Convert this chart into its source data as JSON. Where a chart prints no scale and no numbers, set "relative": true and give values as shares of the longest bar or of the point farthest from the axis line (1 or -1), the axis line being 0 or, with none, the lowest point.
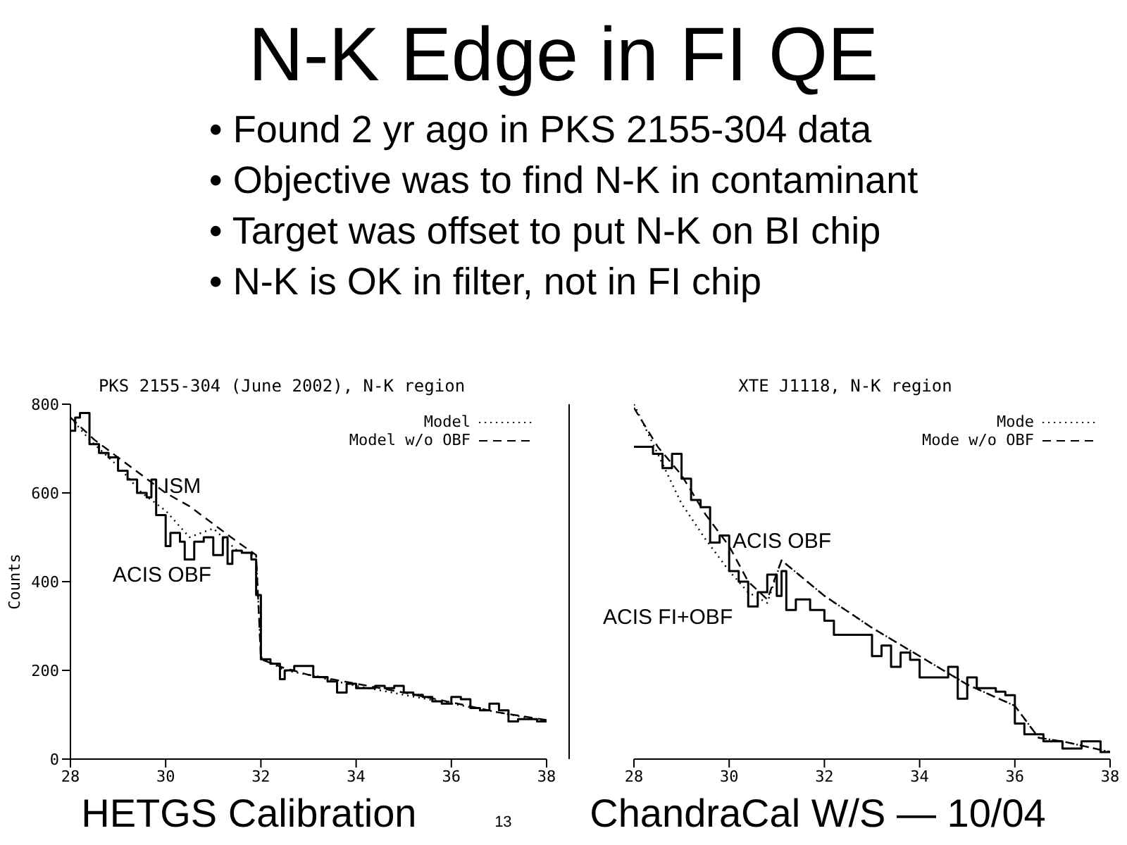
{
  "chart_data": [
    {
      "type": "other",
      "title": "N-K Edge in FI QE",
      "annotations": [
        "• Found 2 yr ago in PKS 2155-304 data",
        "• Objective was to find N-K in contaminant",
        "• Target was offset to put N-K on BI chip",
        "• N-K is OK in filter, not in FI chip"
      ]
    },
    {
      "type": "step",
      "title": "PKS 2155-304 (June 2002), N-K region",
      "ylabel": "Counts",
      "xlim": [
        28,
        38
      ],
      "xticks": [
        28,
        30,
        32,
        34,
        36,
        38
      ],
      "ylim": [
        0,
        800
      ],
      "yticks": [
        0,
        200,
        400,
        600,
        800
      ],
      "legend": "top right",
      "marker": "none",
      "annotations": [
        "ISM",
        "ACIS OBF"
      ],
      "series": [
        {
          "color": "#000000",
          "line_style": "solid",
          "x": [
            28.0,
            28.1,
            28.2,
            28.4,
            28.6,
            28.8,
            29.0,
            29.2,
            29.4,
            29.6,
            29.7,
            29.8,
            30.0,
            30.1,
            30.3,
            30.4,
            30.6,
            30.8,
            31.0,
            31.2,
            31.3,
            31.4,
            31.6,
            31.8,
            31.9,
            32.0,
            32.2,
            32.4,
            32.5,
            32.7,
            33.1,
            33.4,
            33.6,
            33.8,
            34.0,
            34.2,
            34.4,
            34.6,
            34.8,
            35.0,
            35.2,
            35.4,
            35.6,
            35.8,
            36.0,
            36.2,
            36.4,
            36.6,
            36.8,
            37.0,
            37.2,
            37.4,
            37.6,
            37.8,
            38.0
          ],
          "values": [
            740,
            770,
            780,
            710,
            690,
            680,
            650,
            630,
            600,
            590,
            630,
            550,
            480,
            510,
            490,
            450,
            490,
            500,
            460,
            500,
            440,
            470,
            465,
            450,
            370,
            225,
            215,
            180,
            200,
            210,
            185,
            175,
            150,
            170,
            160,
            160,
            165,
            160,
            165,
            150,
            145,
            140,
            130,
            125,
            140,
            135,
            115,
            110,
            125,
            110,
            85,
            90,
            90,
            85,
            85
          ]
        },
        {
          "type": "line",
          "name": "Model",
          "color": "#000000",
          "line_style": "dotted",
          "x": [
            28.0,
            28.4,
            29.0,
            29.5,
            30.0,
            30.5,
            31.0,
            31.5,
            31.9,
            32.0,
            32.5,
            33.0,
            34.0,
            35.0,
            36.0,
            37.0,
            38.0
          ],
          "values": [
            770,
            720,
            660,
            600,
            560,
            500,
            520,
            470,
            460,
            230,
            200,
            190,
            165,
            145,
            125,
            105,
            85
          ]
        },
        {
          "type": "line",
          "name": "Model w/o OBF",
          "color": "#000000",
          "line_style": "dashed",
          "x": [
            28.0,
            28.5,
            29.0,
            29.5,
            30.0,
            30.5,
            31.0,
            31.5,
            31.9,
            32.0,
            32.5,
            33.0,
            34.0,
            35.0,
            36.0,
            37.0,
            38.0
          ],
          "values": [
            770,
            720,
            680,
            640,
            600,
            570,
            530,
            490,
            460,
            225,
            205,
            190,
            170,
            150,
            128,
            105,
            88
          ]
        }
      ]
    },
    {
      "type": "step",
      "title": "XTE J1118, N-K region",
      "relative": true,
      "xlim": [
        28,
        38
      ],
      "xticks": [
        28,
        30,
        32,
        34,
        36,
        38
      ],
      "legend": "top right",
      "marker": "none",
      "annotations": [
        "ACIS OBF",
        "ACIS FI+OBF"
      ],
      "series": [
        {
          "color": "#000000",
          "line_style": "solid",
          "x": [
            28.0,
            28.4,
            28.6,
            28.8,
            29.0,
            29.2,
            29.4,
            29.6,
            29.8,
            30.0,
            30.2,
            30.4,
            30.6,
            30.8,
            31.0,
            31.1,
            31.2,
            31.4,
            31.7,
            32.0,
            32.2,
            33.0,
            33.2,
            33.4,
            33.6,
            33.8,
            34.0,
            34.4,
            34.6,
            34.8,
            35.0,
            35.2,
            35.6,
            35.8,
            36.0,
            36.2,
            36.6,
            37.0,
            37.4,
            37.8,
            38.0
          ],
          "values": [
            0.88,
            0.86,
            0.82,
            0.86,
            0.79,
            0.73,
            0.71,
            0.61,
            0.63,
            0.53,
            0.5,
            0.43,
            0.47,
            0.52,
            0.46,
            0.53,
            0.42,
            0.45,
            0.42,
            0.39,
            0.35,
            0.29,
            0.32,
            0.26,
            0.3,
            0.28,
            0.23,
            0.23,
            0.26,
            0.17,
            0.23,
            0.2,
            0.19,
            0.18,
            0.1,
            0.07,
            0.05,
            0.03,
            0.05,
            0.02,
            0.02
          ]
        },
        {
          "type": "line",
          "name": "Mode",
          "color": "#000000",
          "line_style": "dotted",
          "x": [
            28.0,
            28.5,
            29.0,
            29.5,
            30.0,
            30.4,
            30.8,
            31.1,
            32.0,
            33.0,
            34.0,
            35.0,
            36.0,
            36.5,
            37.0,
            38.0
          ],
          "values": [
            1.0,
            0.86,
            0.72,
            0.62,
            0.53,
            0.47,
            0.44,
            0.56,
            0.46,
            0.37,
            0.29,
            0.21,
            0.15,
            0.06,
            0.05,
            0.02
          ]
        },
        {
          "type": "line",
          "name": "Mode w/o OBF",
          "color": "#000000",
          "line_style": "dashed",
          "x": [
            28.0,
            28.5,
            29.0,
            29.5,
            30.0,
            30.4,
            30.8,
            31.1,
            32.0,
            33.0,
            34.0,
            35.0,
            36.0,
            36.5,
            37.0,
            38.0
          ],
          "values": [
            0.99,
            0.88,
            0.8,
            0.69,
            0.6,
            0.5,
            0.45,
            0.56,
            0.46,
            0.37,
            0.29,
            0.21,
            0.15,
            0.06,
            0.05,
            0.02
          ]
        }
      ]
    },
    {
      "type": "other",
      "annotations": [
        "HETGS Calibration",
        "13",
        "ChandraCal W/S — 10/04"
      ]
    }
  ]
}
